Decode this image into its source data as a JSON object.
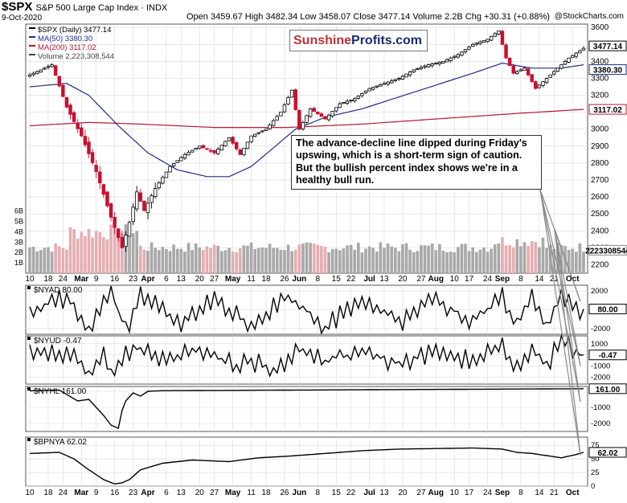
{
  "header": {
    "symbol": "$SPX",
    "name": "S&P 500 Large Cap Index",
    "exchange": "INDX",
    "date": "9-Oct-2020",
    "ohlc": "Open 3459.67  High 3482.34  Low 3458.07  Close 3477.14  Volume 2.2B  Chg +30.31 (+0.88%)",
    "credit": "@StockCharts.com"
  },
  "logo": {
    "part1": "Sunshine",
    "part2": "Profits.com"
  },
  "annotation": "The advance-decline line dipped during Friday's upswing, which is a short-term sign of caution. But the bullish percent index shows we're in a healthy bull run.",
  "colors": {
    "up": "#000000",
    "down": "#c8102e",
    "ma50": "#1f2d8a",
    "ma200": "#b5182f",
    "vol_up": "#a9a9a9",
    "vol_down": "#e6aeb2",
    "grid": "#d9d9d9",
    "arrow": "#8a8a8a"
  },
  "chart_data": [
    {
      "type": "candlestick",
      "panel": "price",
      "title": "$SPX (Daily) 3477.14",
      "legend": [
        "$SPX (Daily) 3477.14",
        "MA(50) 3380.30",
        "MA(200) 3117.02",
        "Volume 2,223,308,544"
      ],
      "y_ticks": [
        2200,
        2300,
        2400,
        2500,
        2600,
        2700,
        2800,
        2900,
        3000,
        3100,
        3200,
        3300,
        3400,
        3500,
        3600
      ],
      "ylim": [
        2150,
        3620
      ],
      "volume_ticks": [
        "1B",
        "2B",
        "3B",
        "4B",
        "5B",
        "6B"
      ],
      "x_tick_labels": [
        "10",
        "18",
        "24",
        "Mar",
        "9",
        "16",
        "23",
        "Apr",
        "6",
        "13",
        "20",
        "27",
        "May",
        "11",
        "18",
        "26",
        "Jun",
        "8",
        "15",
        "22",
        "Jul",
        "13",
        "20",
        "27",
        "Aug",
        "10",
        "17",
        "24",
        "Sep",
        "8",
        "14",
        "21",
        "Oct"
      ],
      "value_labels": {
        "close": "3477.14",
        "ma50": "3380.30",
        "ma200": "3117.02",
        "volume": "2223308544"
      },
      "close_keypoints": [
        [
          0,
          3320
        ],
        [
          6,
          3380
        ],
        [
          10,
          3130
        ],
        [
          14,
          2960
        ],
        [
          18,
          2750
        ],
        [
          22,
          2480
        ],
        [
          25,
          2300
        ],
        [
          27,
          2450
        ],
        [
          29,
          2630
        ],
        [
          31,
          2520
        ],
        [
          34,
          2650
        ],
        [
          38,
          2780
        ],
        [
          42,
          2850
        ],
        [
          46,
          2900
        ],
        [
          50,
          2860
        ],
        [
          54,
          2950
        ],
        [
          57,
          2850
        ],
        [
          60,
          2960
        ],
        [
          64,
          3000
        ],
        [
          68,
          3100
        ],
        [
          71,
          3230
        ],
        [
          73,
          3000
        ],
        [
          76,
          3120
        ],
        [
          80,
          3060
        ],
        [
          84,
          3150
        ],
        [
          88,
          3180
        ],
        [
          92,
          3240
        ],
        [
          96,
          3270
        ],
        [
          100,
          3300
        ],
        [
          104,
          3350
        ],
        [
          108,
          3380
        ],
        [
          112,
          3400
        ],
        [
          116,
          3440
        ],
        [
          120,
          3500
        ],
        [
          124,
          3530
        ],
        [
          127,
          3580
        ],
        [
          129,
          3420
        ],
        [
          131,
          3330
        ],
        [
          134,
          3360
        ],
        [
          137,
          3240
        ],
        [
          140,
          3300
        ],
        [
          143,
          3360
        ],
        [
          146,
          3420
        ],
        [
          150,
          3477
        ]
      ],
      "ma50_keypoints": [
        [
          0,
          3250
        ],
        [
          10,
          3270
        ],
        [
          16,
          3200
        ],
        [
          24,
          3020
        ],
        [
          32,
          2860
        ],
        [
          40,
          2760
        ],
        [
          48,
          2720
        ],
        [
          54,
          2720
        ],
        [
          60,
          2780
        ],
        [
          66,
          2890
        ],
        [
          72,
          3000
        ],
        [
          80,
          3070
        ],
        [
          90,
          3120
        ],
        [
          100,
          3190
        ],
        [
          110,
          3260
        ],
        [
          120,
          3330
        ],
        [
          128,
          3390
        ],
        [
          136,
          3360
        ],
        [
          144,
          3360
        ],
        [
          150,
          3380
        ]
      ],
      "ma200_keypoints": [
        [
          0,
          3020
        ],
        [
          16,
          3040
        ],
        [
          30,
          3030
        ],
        [
          50,
          3010
        ],
        [
          70,
          3010
        ],
        [
          90,
          3030
        ],
        [
          110,
          3060
        ],
        [
          130,
          3090
        ],
        [
          150,
          3117
        ]
      ]
    },
    {
      "type": "line",
      "panel": "indicator",
      "name": "$NYAD 80.00",
      "y_ticks": [
        "2000",
        "0",
        "-2000"
      ],
      "ylim": [
        -2600,
        2600
      ],
      "last_value": "80.00",
      "keypoints": [
        [
          0,
          -200
        ],
        [
          10,
          1400
        ],
        [
          16,
          -2100
        ],
        [
          22,
          1900
        ],
        [
          26,
          -2200
        ],
        [
          30,
          1700
        ],
        [
          40,
          -1500
        ],
        [
          50,
          1200
        ],
        [
          60,
          -1600
        ],
        [
          70,
          1500
        ],
        [
          80,
          -1800
        ],
        [
          90,
          1300
        ],
        [
          100,
          -1400
        ],
        [
          110,
          1100
        ],
        [
          120,
          -1300
        ],
        [
          128,
          1500
        ],
        [
          132,
          -1900
        ],
        [
          136,
          1400
        ],
        [
          140,
          -1500
        ],
        [
          144,
          1700
        ],
        [
          148,
          -200
        ],
        [
          150,
          80
        ]
      ]
    },
    {
      "type": "line",
      "panel": "indicator",
      "name": "$NYUD -0.47",
      "y_ticks": [
        "1000",
        "0",
        "-1000",
        "-2000"
      ],
      "ylim": [
        -2600,
        1700
      ],
      "last_value": "-0.47",
      "keypoints": [
        [
          0,
          0
        ],
        [
          6,
          300
        ],
        [
          12,
          -300
        ],
        [
          16,
          -1500
        ],
        [
          20,
          600
        ],
        [
          22,
          -1600
        ],
        [
          28,
          800
        ],
        [
          36,
          -600
        ],
        [
          46,
          500
        ],
        [
          56,
          -900
        ],
        [
          62,
          -600
        ],
        [
          66,
          -1700
        ],
        [
          72,
          400
        ],
        [
          80,
          -500
        ],
        [
          90,
          300
        ],
        [
          100,
          -700
        ],
        [
          110,
          200
        ],
        [
          120,
          -500
        ],
        [
          128,
          700
        ],
        [
          132,
          -1100
        ],
        [
          136,
          400
        ],
        [
          140,
          -900
        ],
        [
          144,
          1300
        ],
        [
          148,
          100
        ],
        [
          150,
          -0.47
        ]
      ]
    },
    {
      "type": "line",
      "panel": "indicator",
      "name": "$NYHL 161.00",
      "y_ticks": [
        "0",
        "-1000",
        "-2000"
      ],
      "ylim": [
        -2500,
        300
      ],
      "last_value": "161.00",
      "keypoints": [
        [
          0,
          30
        ],
        [
          8,
          80
        ],
        [
          13,
          -600
        ],
        [
          16,
          -500
        ],
        [
          20,
          -1500
        ],
        [
          22,
          -2100
        ],
        [
          24,
          -2300
        ],
        [
          25,
          -1200
        ],
        [
          26,
          -600
        ],
        [
          28,
          -100
        ],
        [
          30,
          -300
        ],
        [
          32,
          0
        ],
        [
          36,
          40
        ],
        [
          150,
          161
        ]
      ]
    },
    {
      "type": "line",
      "panel": "indicator",
      "name": "$BPNYA 62.02",
      "y_ticks": [
        "75",
        "50",
        "25",
        "0"
      ],
      "ylim": [
        0,
        90
      ],
      "last_value": "62.02",
      "keypoints": [
        [
          0,
          60
        ],
        [
          8,
          62
        ],
        [
          12,
          50
        ],
        [
          16,
          30
        ],
        [
          20,
          12
        ],
        [
          23,
          4
        ],
        [
          25,
          6
        ],
        [
          27,
          12
        ],
        [
          30,
          30
        ],
        [
          36,
          42
        ],
        [
          44,
          48
        ],
        [
          54,
          45
        ],
        [
          62,
          52
        ],
        [
          70,
          55
        ],
        [
          80,
          60
        ],
        [
          90,
          65
        ],
        [
          100,
          68
        ],
        [
          110,
          69
        ],
        [
          120,
          70
        ],
        [
          128,
          68
        ],
        [
          132,
          62
        ],
        [
          136,
          60
        ],
        [
          140,
          56
        ],
        [
          144,
          52
        ],
        [
          148,
          58
        ],
        [
          150,
          62
        ]
      ]
    }
  ]
}
